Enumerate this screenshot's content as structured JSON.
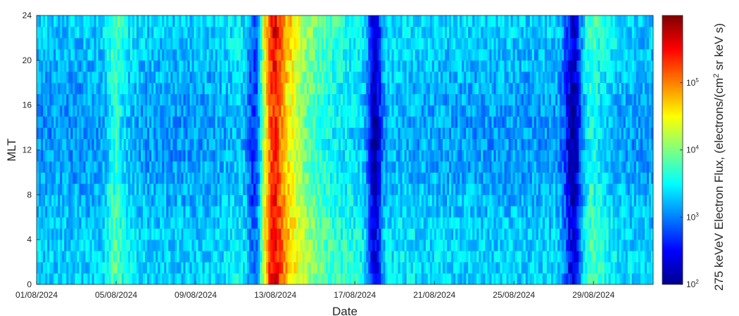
{
  "chart_data": {
    "type": "heatmap",
    "xlabel": "Date",
    "ylabel": "MLT",
    "colorbar_label": "275 keVeV Electron Flux, (electrons/(cm",
    "colorbar_label_sup": "2",
    "colorbar_label_end": " sr keV s)",
    "x_range": [
      "01/08/2024",
      "01/09/2024"
    ],
    "x_ticks": [
      {
        "date": "01/08/2024",
        "day": 0
      },
      {
        "date": "05/08/2024",
        "day": 4
      },
      {
        "date": "09/08/2024",
        "day": 8
      },
      {
        "date": "13/08/2024",
        "day": 12
      },
      {
        "date": "17/08/2024",
        "day": 16
      },
      {
        "date": "21/08/2024",
        "day": 20
      },
      {
        "date": "25/08/2024",
        "day": 24
      },
      {
        "date": "29/08/2024",
        "day": 28
      }
    ],
    "ylim": [
      0,
      24
    ],
    "y_ticks": [
      0,
      4,
      8,
      12,
      16,
      20,
      24
    ],
    "colorbar": {
      "scale": "log",
      "range": [
        100,
        1000000
      ],
      "ticks": [
        {
          "value": 100,
          "base": "10",
          "exp": "2"
        },
        {
          "value": 1000,
          "base": "10",
          "exp": "3"
        },
        {
          "value": 10000,
          "base": "10",
          "exp": "4"
        },
        {
          "value": 100000,
          "base": "10",
          "exp": "5"
        }
      ],
      "colormap": "jet"
    },
    "mlt_bins": [
      0,
      1,
      2,
      3,
      4,
      5,
      6,
      7,
      8,
      9,
      10,
      11,
      12,
      13,
      14,
      15,
      16,
      17,
      18,
      19,
      20,
      21,
      22,
      23,
      24
    ],
    "baseline_log10_flux": 3.2,
    "features": [
      {
        "date": "05/08/2024",
        "width_days": 0.7,
        "log10_flux_delta": 0.55
      },
      {
        "date": "12/08/2024",
        "width_days": 0.6,
        "log10_flux_delta": -1.0
      },
      {
        "date": "13/08/2024",
        "width_days": 1.0,
        "log10_flux_delta": 1.7
      },
      {
        "date": "14/08/2024",
        "width_days": 3.5,
        "log10_flux_delta": 0.7
      },
      {
        "date": "18/08/2024",
        "width_days": 0.5,
        "log10_flux_delta": -1.1
      },
      {
        "date": "28/08/2024",
        "width_days": 0.6,
        "log10_flux_delta": -1.0
      },
      {
        "date": "29/08/2024",
        "width_days": 1.0,
        "log10_flux_delta": 0.5
      }
    ]
  }
}
